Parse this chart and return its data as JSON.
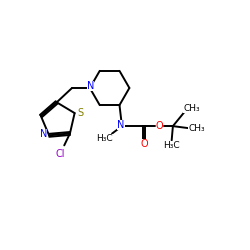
{
  "background": "#ffffff",
  "bond_color": "#000000",
  "N_color": "#0000ff",
  "O_color": "#ff0000",
  "S_color": "#808000",
  "Cl_color": "#9900cc",
  "figsize": [
    2.5,
    2.5
  ],
  "dpi": 100,
  "xlim": [
    0,
    10
  ],
  "ylim": [
    0,
    10
  ],
  "lw": 1.4,
  "fs": 7.0
}
